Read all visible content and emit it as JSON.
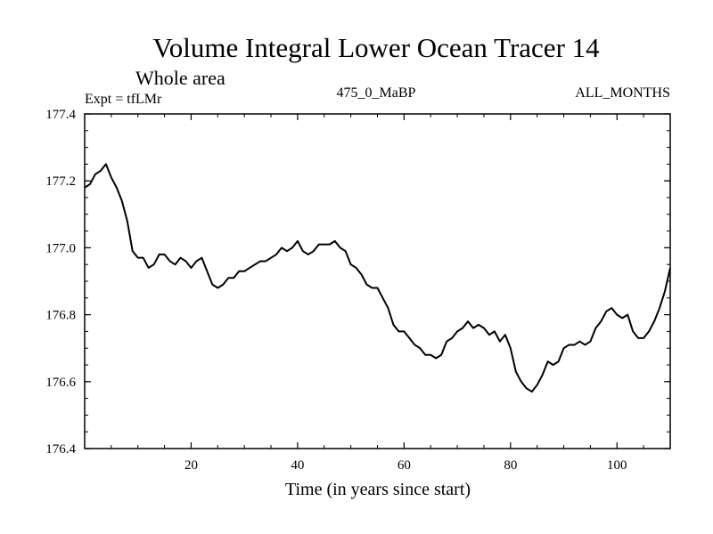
{
  "chart_data": {
    "type": "line",
    "title": "Volume Integral Lower Ocean Tracer 14",
    "subtitle": "Whole area",
    "expt_label": "Expt = tfLMr",
    "center_label": "475_0_MaBP",
    "right_label": "ALL_MONTHS",
    "xlabel": "Time (in years since start)",
    "ylabel": "",
    "xlim": [
      0,
      110
    ],
    "ylim": [
      176.4,
      177.4
    ],
    "xticks": [
      20,
      40,
      60,
      80,
      100
    ],
    "yticks": [
      176.4,
      176.6,
      176.8,
      177.0,
      177.2,
      177.4
    ],
    "ytick_labels": [
      "176.4",
      "176.6",
      "176.8",
      "177.0",
      "177.2",
      "177.4"
    ],
    "grid": false,
    "series": [
      {
        "name": "Tracer 14",
        "color": "#000000",
        "x": [
          0,
          1,
          2,
          3,
          4,
          5,
          6,
          7,
          8,
          9,
          10,
          11,
          12,
          13,
          14,
          15,
          16,
          17,
          18,
          19,
          20,
          21,
          22,
          23,
          24,
          25,
          26,
          27,
          28,
          29,
          30,
          31,
          32,
          33,
          34,
          35,
          36,
          37,
          38,
          39,
          40,
          41,
          42,
          43,
          44,
          45,
          46,
          47,
          48,
          49,
          50,
          51,
          52,
          53,
          54,
          55,
          56,
          57,
          58,
          59,
          60,
          61,
          62,
          63,
          64,
          65,
          66,
          67,
          68,
          69,
          70,
          71,
          72,
          73,
          74,
          75,
          76,
          77,
          78,
          79,
          80,
          81,
          82,
          83,
          84,
          85,
          86,
          87,
          88,
          89,
          90,
          91,
          92,
          93,
          94,
          95,
          96,
          97,
          98,
          99,
          100,
          101,
          102,
          103,
          104,
          105,
          106,
          107,
          108,
          109,
          110
        ],
        "values": [
          177.18,
          177.19,
          177.22,
          177.23,
          177.25,
          177.21,
          177.18,
          177.14,
          177.08,
          176.99,
          176.97,
          176.97,
          176.94,
          176.95,
          176.98,
          176.98,
          176.96,
          176.95,
          176.97,
          176.96,
          176.94,
          176.96,
          176.97,
          176.93,
          176.89,
          176.88,
          176.89,
          176.91,
          176.91,
          176.93,
          176.93,
          176.94,
          176.95,
          176.96,
          176.96,
          176.97,
          176.98,
          177.0,
          176.99,
          177.0,
          177.02,
          176.99,
          176.98,
          176.99,
          177.01,
          177.01,
          177.01,
          177.02,
          177.0,
          176.99,
          176.95,
          176.94,
          176.92,
          176.89,
          176.88,
          176.88,
          176.85,
          176.82,
          176.77,
          176.75,
          176.75,
          176.73,
          176.71,
          176.7,
          176.68,
          176.68,
          176.67,
          176.68,
          176.72,
          176.73,
          176.75,
          176.76,
          176.78,
          176.76,
          176.77,
          176.76,
          176.74,
          176.75,
          176.72,
          176.74,
          176.7,
          176.63,
          176.6,
          176.58,
          176.57,
          176.59,
          176.62,
          176.66,
          176.65,
          176.66,
          176.7,
          176.71,
          176.71,
          176.72,
          176.71,
          176.72,
          176.76,
          176.78,
          176.81,
          176.82,
          176.8,
          176.79,
          176.8,
          176.75,
          176.73,
          176.73,
          176.75,
          176.78,
          176.82,
          176.87,
          176.94
        ]
      }
    ]
  }
}
